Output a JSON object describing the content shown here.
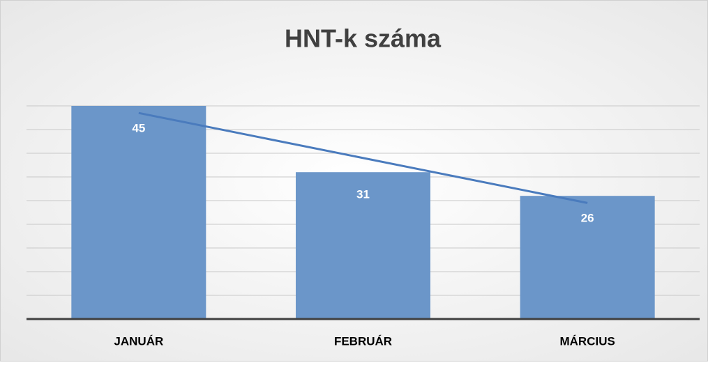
{
  "chart_data": {
    "type": "bar",
    "title": "HNT-k száma",
    "categories": [
      "JANUÁR",
      "FEBRUÁR",
      "MÁRCIUS"
    ],
    "values": [
      45,
      31,
      26
    ],
    "color": "#6b96c9",
    "ylim": [
      0,
      45
    ],
    "yticks": [
      0,
      5,
      10,
      15,
      20,
      25,
      30,
      35,
      40,
      45
    ],
    "grid": true,
    "trendline": {
      "type": "linear",
      "color": "#4a7bbd"
    }
  }
}
